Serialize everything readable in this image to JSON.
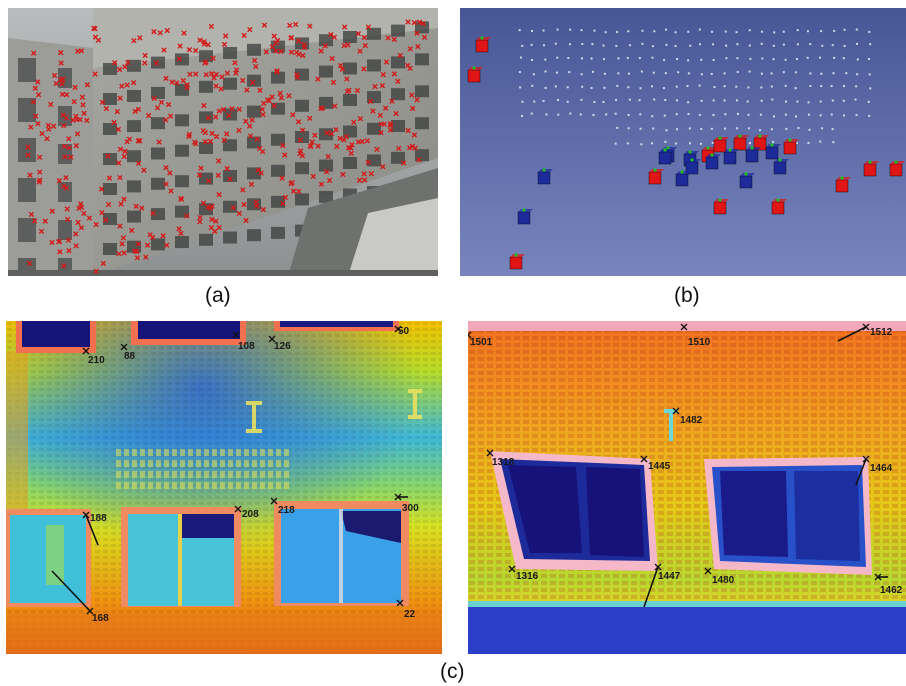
{
  "figure": {
    "captions": {
      "a": "(a)",
      "b": "(b)",
      "c": "(c)"
    },
    "thermal_left_labels": [
      "210",
      "88",
      "108",
      "126",
      "50",
      "188",
      "168",
      "208",
      "218",
      "300",
      "22"
    ],
    "thermal_right_labels": [
      "1501",
      "1510",
      "1512",
      "1482",
      "1318",
      "1445",
      "1464",
      "1316",
      "1447",
      "1480",
      "1462"
    ],
    "colors": {
      "marker": "#d21a1a",
      "scene_bg": "#5a6aa8",
      "cam_red": "#e01515",
      "cam_blue": "#1c2a9a"
    }
  }
}
